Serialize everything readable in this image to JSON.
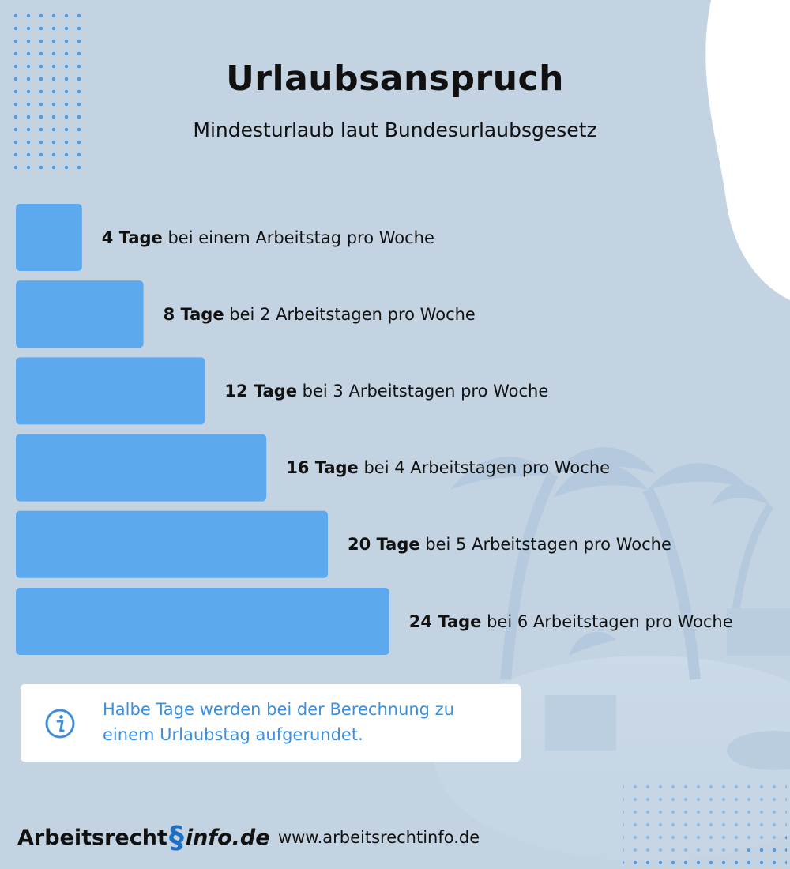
{
  "header": {
    "title": "Urlaubsanspruch",
    "subtitle": "Mindesturlaub laut Bundesurlaubsgesetz"
  },
  "chart_data": {
    "type": "bar",
    "orientation": "horizontal",
    "title": "Urlaubsanspruch",
    "subtitle": "Mindesturlaub laut Bundesurlaubsgesetz",
    "categories": [
      "1",
      "2",
      "3",
      "4",
      "5",
      "6"
    ],
    "values": [
      4,
      8,
      12,
      16,
      20,
      24
    ],
    "labels": [
      {
        "bold": "4 Tage",
        "rest": " bei einem Arbeitstag pro Woche"
      },
      {
        "bold": "8 Tage",
        "rest": " bei 2 Arbeitstagen pro Woche"
      },
      {
        "bold": "12 Tage",
        "rest": " bei 3 Arbeitstagen pro Woche"
      },
      {
        "bold": "16 Tage",
        "rest": " bei 4 Arbeitstagen pro Woche"
      },
      {
        "bold": "20 Tage",
        "rest": " bei 5 Arbeitstagen pro Woche"
      },
      {
        "bold": "24 Tage",
        "rest": " bei 6 Arbeitstagen pro Woche"
      }
    ],
    "xlim": [
      0,
      24
    ],
    "grid": false,
    "bar_color": "#5da9ee"
  },
  "info": {
    "icon": "info-icon",
    "text": "Halbe Tage werden bei der Berechnung zu einem Urlaubstag aufgerundet."
  },
  "footer": {
    "logo_left": "Arbeitsrecht",
    "logo_symbol": "§",
    "logo_right": "info.de",
    "website": "www.arbeitsrechtinfo.de"
  },
  "colors": {
    "background": "#c3d3e2",
    "accent": "#5da9ee",
    "info_text": "#3d8fdc",
    "logo_symbol": "#1e6fc4"
  }
}
